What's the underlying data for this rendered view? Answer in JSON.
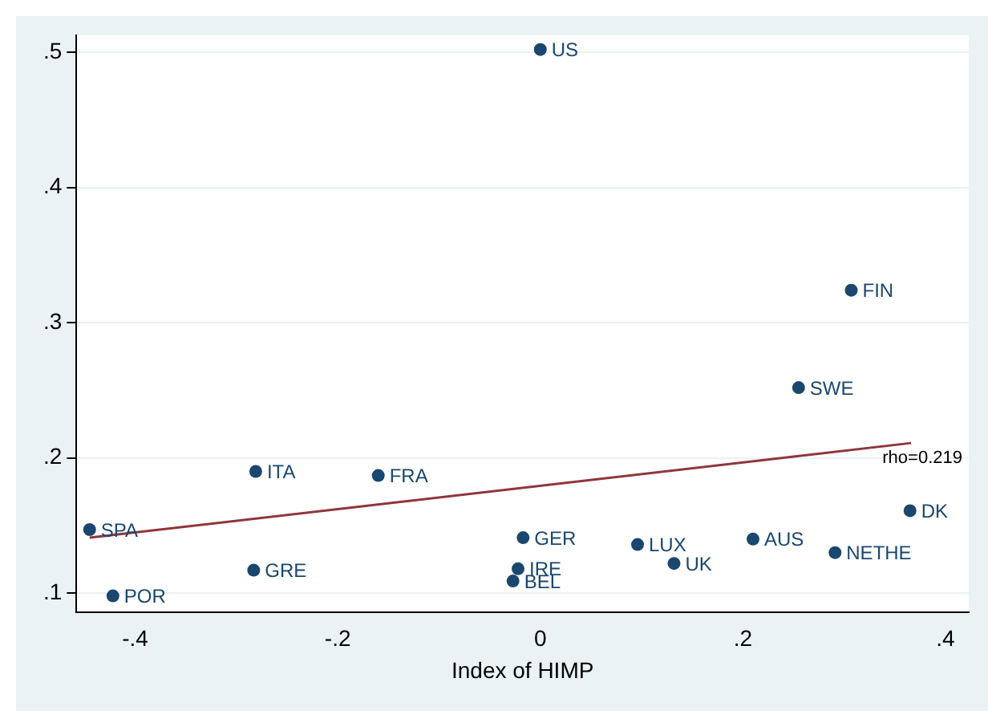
{
  "chart_data": {
    "type": "scatter",
    "xlabel": "Index of HIMP",
    "xlim": [
      -0.458,
      0.423
    ],
    "xticks": [
      {
        "value": -0.4,
        "label": "-.4"
      },
      {
        "value": -0.2,
        "label": "-.2"
      },
      0,
      {
        "value": 0.2,
        "label": ".2"
      },
      {
        "value": 0.4,
        "label": ".4"
      }
    ],
    "ylim": [
      0.086,
      0.5125
    ],
    "yticks": [
      {
        "value": 0.1,
        "label": ".1"
      },
      {
        "value": 0.2,
        "label": ".2"
      },
      {
        "value": 0.3,
        "label": ".3"
      },
      {
        "value": 0.4,
        "label": ".4"
      },
      {
        "value": 0.5,
        "label": ".5"
      }
    ],
    "grid": "y",
    "legend": false,
    "marker": "circle",
    "series": [
      {
        "color": "#1a476f",
        "x": [
          0,
          0.307,
          0.255,
          -0.281,
          -0.16,
          -0.445,
          0.365,
          -0.017,
          0.096,
          0.21,
          0.291,
          0.132,
          -0.022,
          -0.027,
          -0.283,
          -0.422
        ],
        "values": [
          0.502,
          0.324,
          0.252,
          0.19,
          0.187,
          0.147,
          0.161,
          0.141,
          0.136,
          0.14,
          0.13,
          0.122,
          0.118,
          0.109,
          0.117,
          0.098
        ],
        "value_labels": [
          "US",
          "FIN",
          "SWE",
          "ITA",
          "FRA",
          "SPA",
          "DK",
          "GER",
          "LUX",
          "AUS",
          "NETHE",
          "UK",
          "IRE",
          "BEL",
          "GRE",
          "POR"
        ]
      },
      {
        "type": "line",
        "marker": "none",
        "color": "#90353b",
        "x": [
          -0.445,
          0.366
        ],
        "values": [
          0.141,
          0.211
        ]
      }
    ],
    "annotations": [
      {
        "text": "rho=0.219",
        "x": 0.366,
        "y": 0.211
      }
    ]
  }
}
